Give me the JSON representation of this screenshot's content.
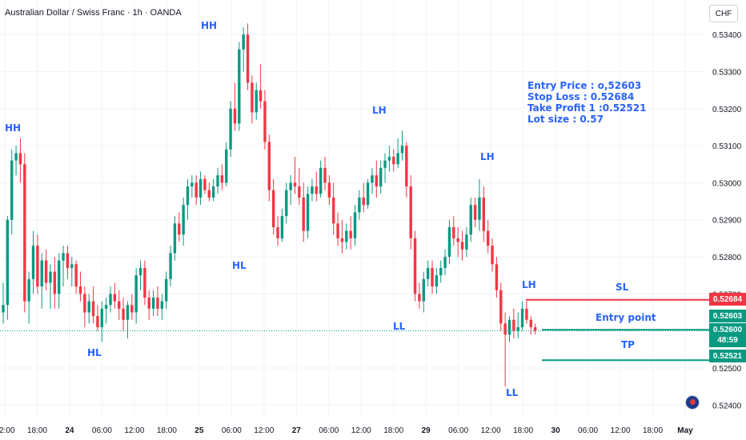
{
  "header": {
    "title": "Australian Dollar / Swiss Franc · 1h · OANDA",
    "currency_button": "CHF"
  },
  "trade_info": {
    "entry_price": "Entry Price : o,52603",
    "stop_loss": "Stop Loss : 0.52684",
    "take_profit": "Take Profit 1 :0.52521",
    "lot_size": "Lot size : 0.57"
  },
  "chart_data": {
    "type": "candlestick",
    "price_range": [
      0.52366,
      0.53476
    ],
    "y_ticks": [
      "0.53400",
      "0.53300",
      "0.53200",
      "0.53100",
      "0.53000",
      "0.52900",
      "0.52800",
      "0.52700",
      "0.52500",
      "0.52400"
    ],
    "x_ticks": [
      "12:00",
      "18:00",
      "24",
      "06:00",
      "12:00",
      "18:00",
      "25",
      "06:00",
      "12:00",
      "27",
      "06:00",
      "12:00",
      "18:00",
      "29",
      "06:00",
      "12:00",
      "18:00",
      "30",
      "06:00",
      "12:00",
      "18:00",
      "May"
    ],
    "colors": {
      "up": "#089981",
      "down": "#f23645",
      "sl": "#f23645",
      "entry": "#089981",
      "tp": "#089981",
      "current": "#089981"
    },
    "current_price": {
      "value": 0.526,
      "label": "0.52600",
      "countdown": "48:59"
    },
    "levels": [
      {
        "name": "SL",
        "label": "SL",
        "value": 0.52684,
        "tag": "0.52684"
      },
      {
        "name": "entry",
        "label": "Entry point",
        "value": 0.52603,
        "tag": "0.52603"
      },
      {
        "name": "TP",
        "label": "TP",
        "value": 0.52521,
        "tag": "0.52521"
      }
    ],
    "pivot_labels": [
      "HH",
      "HH",
      "HL",
      "HL",
      "LH",
      "LL",
      "LH",
      "LH",
      "LL"
    ],
    "candles": [
      {
        "o": 0.5265,
        "h": 0.5273,
        "l": 0.5262,
        "c": 0.5267
      },
      {
        "o": 0.5267,
        "h": 0.5291,
        "l": 0.5263,
        "c": 0.529
      },
      {
        "o": 0.529,
        "h": 0.5309,
        "l": 0.5286,
        "c": 0.5306
      },
      {
        "o": 0.5306,
        "h": 0.531,
        "l": 0.5302,
        "c": 0.5308
      },
      {
        "o": 0.5308,
        "h": 0.5312,
        "l": 0.53,
        "c": 0.5305
      },
      {
        "o": 0.5305,
        "h": 0.5308,
        "l": 0.5265,
        "c": 0.5268
      },
      {
        "o": 0.5268,
        "h": 0.5276,
        "l": 0.5262,
        "c": 0.5274
      },
      {
        "o": 0.5274,
        "h": 0.5287,
        "l": 0.527,
        "c": 0.5283
      },
      {
        "o": 0.5283,
        "h": 0.5286,
        "l": 0.527,
        "c": 0.5272
      },
      {
        "o": 0.5272,
        "h": 0.5281,
        "l": 0.5266,
        "c": 0.5279
      },
      {
        "o": 0.5279,
        "h": 0.5282,
        "l": 0.5271,
        "c": 0.5273
      },
      {
        "o": 0.5273,
        "h": 0.5278,
        "l": 0.5266,
        "c": 0.5276
      },
      {
        "o": 0.5276,
        "h": 0.528,
        "l": 0.5266,
        "c": 0.527
      },
      {
        "o": 0.527,
        "h": 0.5281,
        "l": 0.5266,
        "c": 0.5279
      },
      {
        "o": 0.5279,
        "h": 0.5283,
        "l": 0.5272,
        "c": 0.5281
      },
      {
        "o": 0.5281,
        "h": 0.5283,
        "l": 0.5274,
        "c": 0.5277
      },
      {
        "o": 0.5277,
        "h": 0.528,
        "l": 0.5272,
        "c": 0.5278
      },
      {
        "o": 0.5278,
        "h": 0.5279,
        "l": 0.527,
        "c": 0.5272
      },
      {
        "o": 0.5272,
        "h": 0.5276,
        "l": 0.5268,
        "c": 0.527
      },
      {
        "o": 0.527,
        "h": 0.5272,
        "l": 0.5261,
        "c": 0.5265
      },
      {
        "o": 0.5265,
        "h": 0.527,
        "l": 0.5262,
        "c": 0.5268
      },
      {
        "o": 0.5268,
        "h": 0.5272,
        "l": 0.5262,
        "c": 0.5264
      },
      {
        "o": 0.5264,
        "h": 0.5267,
        "l": 0.526,
        "c": 0.5261
      },
      {
        "o": 0.5261,
        "h": 0.5268,
        "l": 0.5257,
        "c": 0.5266
      },
      {
        "o": 0.5266,
        "h": 0.5269,
        "l": 0.5262,
        "c": 0.5267
      },
      {
        "o": 0.5267,
        "h": 0.5272,
        "l": 0.5265,
        "c": 0.527
      },
      {
        "o": 0.527,
        "h": 0.5273,
        "l": 0.5266,
        "c": 0.5268
      },
      {
        "o": 0.5268,
        "h": 0.5271,
        "l": 0.5263,
        "c": 0.5266
      },
      {
        "o": 0.5266,
        "h": 0.5269,
        "l": 0.526,
        "c": 0.5263
      },
      {
        "o": 0.5263,
        "h": 0.5268,
        "l": 0.5258,
        "c": 0.5267
      },
      {
        "o": 0.5267,
        "h": 0.527,
        "l": 0.5263,
        "c": 0.5265
      },
      {
        "o": 0.5265,
        "h": 0.5277,
        "l": 0.5262,
        "c": 0.5275
      },
      {
        "o": 0.5275,
        "h": 0.5279,
        "l": 0.5271,
        "c": 0.5277
      },
      {
        "o": 0.5277,
        "h": 0.5279,
        "l": 0.5267,
        "c": 0.5269
      },
      {
        "o": 0.5269,
        "h": 0.5271,
        "l": 0.5263,
        "c": 0.5266
      },
      {
        "o": 0.5266,
        "h": 0.5271,
        "l": 0.5264,
        "c": 0.5269
      },
      {
        "o": 0.5269,
        "h": 0.5272,
        "l": 0.5264,
        "c": 0.5266
      },
      {
        "o": 0.5266,
        "h": 0.527,
        "l": 0.5263,
        "c": 0.5268
      },
      {
        "o": 0.5268,
        "h": 0.5276,
        "l": 0.5266,
        "c": 0.5274
      },
      {
        "o": 0.5274,
        "h": 0.5283,
        "l": 0.5272,
        "c": 0.5281
      },
      {
        "o": 0.5281,
        "h": 0.5291,
        "l": 0.5279,
        "c": 0.5289
      },
      {
        "o": 0.5289,
        "h": 0.5292,
        "l": 0.5284,
        "c": 0.5286
      },
      {
        "o": 0.5286,
        "h": 0.5296,
        "l": 0.5283,
        "c": 0.5294
      },
      {
        "o": 0.5294,
        "h": 0.5301,
        "l": 0.529,
        "c": 0.5299
      },
      {
        "o": 0.5299,
        "h": 0.5302,
        "l": 0.5296,
        "c": 0.53
      },
      {
        "o": 0.53,
        "h": 0.5302,
        "l": 0.5294,
        "c": 0.5296
      },
      {
        "o": 0.5296,
        "h": 0.5303,
        "l": 0.5294,
        "c": 0.5301
      },
      {
        "o": 0.5301,
        "h": 0.5302,
        "l": 0.5297,
        "c": 0.5298
      },
      {
        "o": 0.5298,
        "h": 0.53,
        "l": 0.5295,
        "c": 0.5296
      },
      {
        "o": 0.5296,
        "h": 0.5301,
        "l": 0.5295,
        "c": 0.5299
      },
      {
        "o": 0.5299,
        "h": 0.5304,
        "l": 0.5297,
        "c": 0.5302
      },
      {
        "o": 0.5302,
        "h": 0.5305,
        "l": 0.5298,
        "c": 0.53
      },
      {
        "o": 0.53,
        "h": 0.5311,
        "l": 0.5299,
        "c": 0.5309
      },
      {
        "o": 0.5309,
        "h": 0.5322,
        "l": 0.5307,
        "c": 0.532
      },
      {
        "o": 0.532,
        "h": 0.5327,
        "l": 0.5314,
        "c": 0.5316
      },
      {
        "o": 0.5316,
        "h": 0.5338,
        "l": 0.5314,
        "c": 0.5336
      },
      {
        "o": 0.5336,
        "h": 0.5342,
        "l": 0.533,
        "c": 0.534
      },
      {
        "o": 0.534,
        "h": 0.5343,
        "l": 0.5325,
        "c": 0.5327
      },
      {
        "o": 0.5327,
        "h": 0.5329,
        "l": 0.5316,
        "c": 0.5319
      },
      {
        "o": 0.5319,
        "h": 0.5327,
        "l": 0.5317,
        "c": 0.5325
      },
      {
        "o": 0.5325,
        "h": 0.5332,
        "l": 0.532,
        "c": 0.5322
      },
      {
        "o": 0.5322,
        "h": 0.5325,
        "l": 0.5309,
        "c": 0.5311
      },
      {
        "o": 0.5311,
        "h": 0.5313,
        "l": 0.5295,
        "c": 0.5298
      },
      {
        "o": 0.5298,
        "h": 0.5301,
        "l": 0.5286,
        "c": 0.5288
      },
      {
        "o": 0.5288,
        "h": 0.5291,
        "l": 0.5283,
        "c": 0.5285
      },
      {
        "o": 0.5285,
        "h": 0.5293,
        "l": 0.5284,
        "c": 0.5291
      },
      {
        "o": 0.5291,
        "h": 0.53,
        "l": 0.5289,
        "c": 0.5298
      },
      {
        "o": 0.5298,
        "h": 0.5302,
        "l": 0.5294,
        "c": 0.53
      },
      {
        "o": 0.53,
        "h": 0.5307,
        "l": 0.5297,
        "c": 0.5299
      },
      {
        "o": 0.5299,
        "h": 0.5304,
        "l": 0.5294,
        "c": 0.5296
      },
      {
        "o": 0.5296,
        "h": 0.53,
        "l": 0.5284,
        "c": 0.5287
      },
      {
        "o": 0.5287,
        "h": 0.5299,
        "l": 0.5285,
        "c": 0.5297
      },
      {
        "o": 0.5297,
        "h": 0.5301,
        "l": 0.5295,
        "c": 0.5299
      },
      {
        "o": 0.5299,
        "h": 0.5303,
        "l": 0.5295,
        "c": 0.5297
      },
      {
        "o": 0.5297,
        "h": 0.5306,
        "l": 0.5296,
        "c": 0.5304
      },
      {
        "o": 0.5304,
        "h": 0.5307,
        "l": 0.5298,
        "c": 0.53
      },
      {
        "o": 0.53,
        "h": 0.5302,
        "l": 0.5294,
        "c": 0.5296
      },
      {
        "o": 0.5296,
        "h": 0.53,
        "l": 0.5286,
        "c": 0.5289
      },
      {
        "o": 0.5289,
        "h": 0.5292,
        "l": 0.5283,
        "c": 0.5285
      },
      {
        "o": 0.5285,
        "h": 0.529,
        "l": 0.5281,
        "c": 0.5284
      },
      {
        "o": 0.5284,
        "h": 0.5289,
        "l": 0.5282,
        "c": 0.5287
      },
      {
        "o": 0.5287,
        "h": 0.5291,
        "l": 0.5282,
        "c": 0.5285
      },
      {
        "o": 0.5285,
        "h": 0.5294,
        "l": 0.5283,
        "c": 0.5292
      },
      {
        "o": 0.5292,
        "h": 0.5298,
        "l": 0.529,
        "c": 0.5296
      },
      {
        "o": 0.5296,
        "h": 0.53,
        "l": 0.5292,
        "c": 0.5294
      },
      {
        "o": 0.5294,
        "h": 0.5301,
        "l": 0.5293,
        "c": 0.53
      },
      {
        "o": 0.53,
        "h": 0.5304,
        "l": 0.5297,
        "c": 0.5302
      },
      {
        "o": 0.5302,
        "h": 0.5306,
        "l": 0.5296,
        "c": 0.5299
      },
      {
        "o": 0.5299,
        "h": 0.5306,
        "l": 0.5297,
        "c": 0.5304
      },
      {
        "o": 0.5304,
        "h": 0.5308,
        "l": 0.53,
        "c": 0.5306
      },
      {
        "o": 0.5306,
        "h": 0.531,
        "l": 0.5303,
        "c": 0.5307
      },
      {
        "o": 0.5307,
        "h": 0.5309,
        "l": 0.5303,
        "c": 0.5305
      },
      {
        "o": 0.5305,
        "h": 0.5312,
        "l": 0.5304,
        "c": 0.5308
      },
      {
        "o": 0.5308,
        "h": 0.5314,
        "l": 0.5306,
        "c": 0.531
      },
      {
        "o": 0.531,
        "h": 0.5311,
        "l": 0.5296,
        "c": 0.5299
      },
      {
        "o": 0.5299,
        "h": 0.5302,
        "l": 0.5282,
        "c": 0.5285
      },
      {
        "o": 0.5285,
        "h": 0.5287,
        "l": 0.5268,
        "c": 0.527
      },
      {
        "o": 0.527,
        "h": 0.5273,
        "l": 0.5266,
        "c": 0.5268
      },
      {
        "o": 0.5268,
        "h": 0.5276,
        "l": 0.5265,
        "c": 0.5274
      },
      {
        "o": 0.5274,
        "h": 0.5279,
        "l": 0.5272,
        "c": 0.5277
      },
      {
        "o": 0.5277,
        "h": 0.5279,
        "l": 0.527,
        "c": 0.5272
      },
      {
        "o": 0.5272,
        "h": 0.5277,
        "l": 0.527,
        "c": 0.5275
      },
      {
        "o": 0.5275,
        "h": 0.5279,
        "l": 0.5273,
        "c": 0.5277
      },
      {
        "o": 0.5277,
        "h": 0.5282,
        "l": 0.5275,
        "c": 0.528
      },
      {
        "o": 0.528,
        "h": 0.529,
        "l": 0.5278,
        "c": 0.5288
      },
      {
        "o": 0.5288,
        "h": 0.5291,
        "l": 0.5283,
        "c": 0.5285
      },
      {
        "o": 0.5285,
        "h": 0.5288,
        "l": 0.528,
        "c": 0.5284
      },
      {
        "o": 0.5284,
        "h": 0.5287,
        "l": 0.5279,
        "c": 0.5282
      },
      {
        "o": 0.5282,
        "h": 0.5288,
        "l": 0.528,
        "c": 0.5286
      },
      {
        "o": 0.5286,
        "h": 0.5296,
        "l": 0.5284,
        "c": 0.5294
      },
      {
        "o": 0.5294,
        "h": 0.5296,
        "l": 0.5288,
        "c": 0.529
      },
      {
        "o": 0.529,
        "h": 0.5301,
        "l": 0.5287,
        "c": 0.5296
      },
      {
        "o": 0.5296,
        "h": 0.5299,
        "l": 0.5284,
        "c": 0.5287
      },
      {
        "o": 0.5287,
        "h": 0.529,
        "l": 0.5281,
        "c": 0.5283
      },
      {
        "o": 0.5283,
        "h": 0.5285,
        "l": 0.5276,
        "c": 0.5278
      },
      {
        "o": 0.5278,
        "h": 0.528,
        "l": 0.5269,
        "c": 0.5271
      },
      {
        "o": 0.5271,
        "h": 0.5273,
        "l": 0.526,
        "c": 0.5262
      },
      {
        "o": 0.5262,
        "h": 0.5265,
        "l": 0.5245,
        "c": 0.5259
      },
      {
        "o": 0.5259,
        "h": 0.5264,
        "l": 0.5257,
        "c": 0.5263
      },
      {
        "o": 0.5263,
        "h": 0.5266,
        "l": 0.5258,
        "c": 0.526
      },
      {
        "o": 0.526,
        "h": 0.5265,
        "l": 0.5258,
        "c": 0.5261
      },
      {
        "o": 0.5261,
        "h": 0.5268,
        "l": 0.526,
        "c": 0.5266
      },
      {
        "o": 0.5266,
        "h": 0.5268,
        "l": 0.5262,
        "c": 0.5263
      },
      {
        "o": 0.5263,
        "h": 0.5264,
        "l": 0.5259,
        "c": 0.5261
      },
      {
        "o": 0.5261,
        "h": 0.5262,
        "l": 0.5259,
        "c": 0.526
      }
    ]
  }
}
